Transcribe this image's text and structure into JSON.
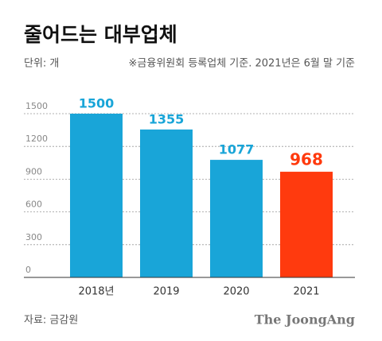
{
  "chart_data": {
    "type": "bar",
    "title": "줄어드는 대부업체",
    "unit": "단위: 개",
    "note": "※금융위원회 등록업체 기준. 2021년은 6월 말 기준",
    "categories": [
      "2018년",
      "2019",
      "2020",
      "2021"
    ],
    "values": [
      1500,
      1355,
      1077,
      968
    ],
    "colors": [
      "#19a5d8",
      "#19a5d8",
      "#19a5d8",
      "#ff3a0e"
    ],
    "ylim": [
      0,
      1500
    ],
    "yticks": [
      0,
      300,
      600,
      900,
      1200,
      1500
    ],
    "grid": true,
    "source": "자료: 금감원",
    "brand": "The JoongAng"
  }
}
